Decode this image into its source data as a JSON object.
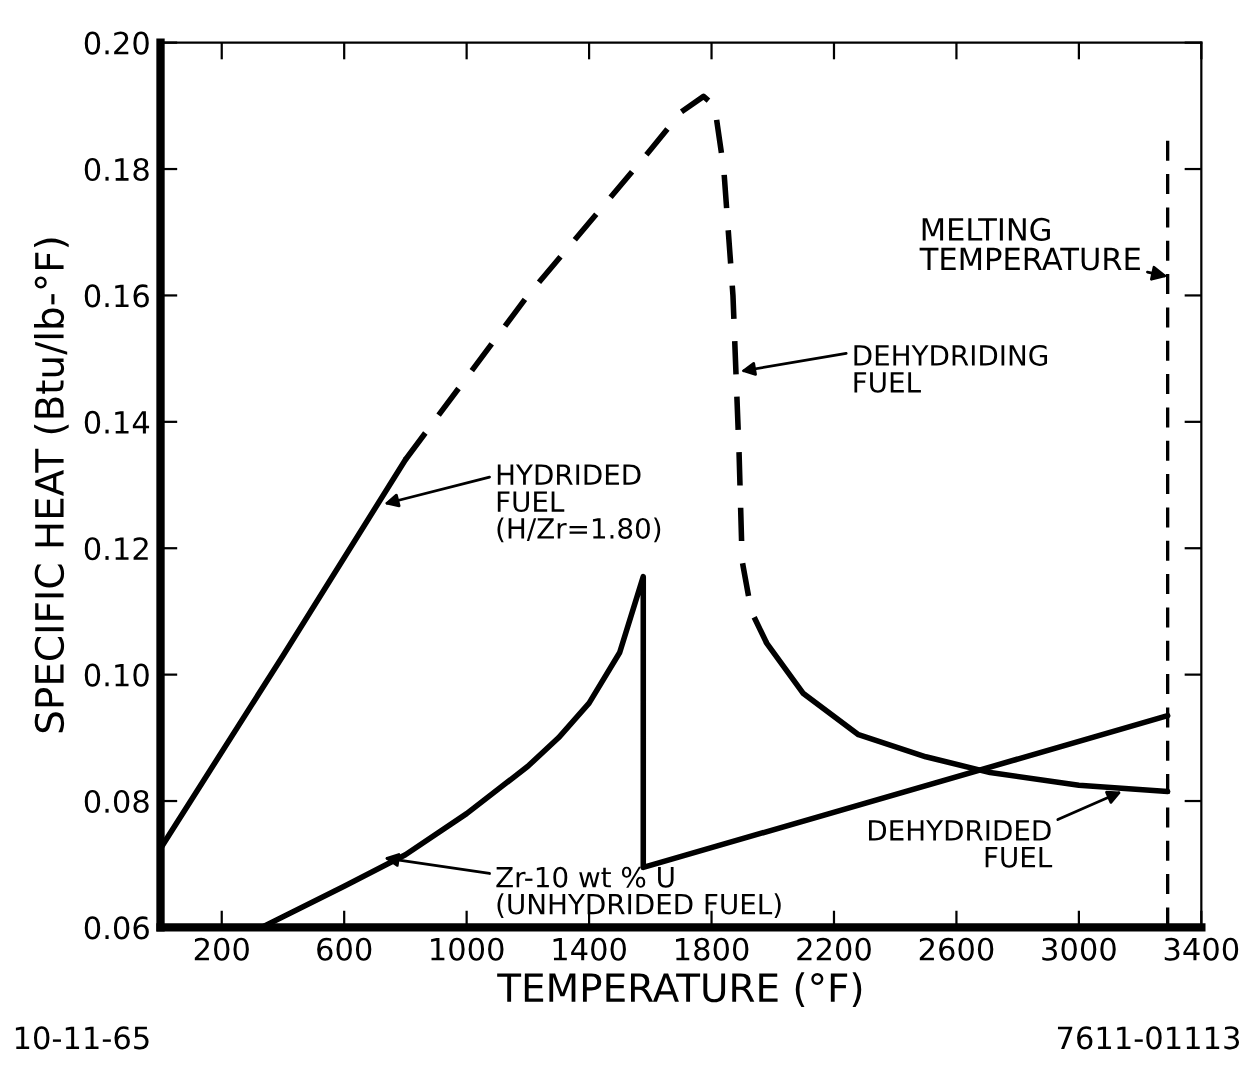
{
  "chart_data": {
    "type": "line",
    "xlabel": "TEMPERATURE (°F)",
    "ylabel": "SPECIFIC HEAT (Btu/lb-°F)",
    "xlim": [
      0,
      3400
    ],
    "xticks": [
      200,
      600,
      1000,
      1400,
      1800,
      2200,
      2600,
      3000,
      3400
    ],
    "ylim": [
      0.06,
      0.2
    ],
    "yticks": [
      {
        "value": 0.06,
        "label": "0.06"
      },
      {
        "value": 0.08,
        "label": "0.08"
      },
      {
        "value": 0.1,
        "label": "0.10"
      },
      {
        "value": 0.12,
        "label": "0.12"
      },
      {
        "value": 0.14,
        "label": "0.14"
      },
      {
        "value": 0.16,
        "label": "0.16"
      },
      {
        "value": 0.18,
        "label": "0.18"
      },
      {
        "value": 0.2,
        "label": "0.20"
      }
    ],
    "grid": false,
    "marker": "none",
    "series": [
      {
        "color": "#000000",
        "line_style": "solid",
        "x": [
          0,
          400,
          800
        ],
        "values": [
          0.0725,
          0.103,
          0.134
        ]
      },
      {
        "color": "#000000",
        "line_style": "dashed",
        "x": [
          800,
          1200,
          1600,
          1700,
          1774,
          1810,
          1840,
          1870,
          1890,
          1900,
          1930,
          1980
        ],
        "values": [
          0.134,
          0.16,
          0.183,
          0.189,
          0.1915,
          0.19,
          0.18,
          0.16,
          0.135,
          0.118,
          0.11,
          0.105
        ]
      },
      {
        "color": "#000000",
        "line_style": "solid",
        "x": [
          1980,
          2100,
          2280,
          2500,
          2710,
          3000,
          3290
        ],
        "values": [
          0.105,
          0.097,
          0.0905,
          0.087,
          0.0845,
          0.0825,
          0.0815
        ]
      },
      {
        "color": "#000000",
        "line_style": "solid",
        "x": [
          330,
          600,
          800,
          1000,
          1200,
          1300,
          1400,
          1500,
          1577,
          1577,
          3290
        ],
        "values": [
          0.06,
          0.0665,
          0.0715,
          0.078,
          0.0855,
          0.09,
          0.0955,
          0.1035,
          0.1155,
          0.0695,
          0.0935
        ]
      }
    ],
    "ref_lines": [
      {
        "axis": "x",
        "value": 3290,
        "label": "MELTING\nTEMPERATURE",
        "color": "#000000",
        "line_style": "dashed"
      }
    ],
    "annotations": [
      {
        "text": "HYDRIDED\nFUEL\n(H/Zr=1.80)",
        "x": 730,
        "y": 0.127
      },
      {
        "text": "DEHYDRIDING\nFUEL",
        "x": 1895,
        "y": 0.148
      },
      {
        "text": "Zr-10 wt % U\n(UNHYDRIDED FUEL)",
        "x": 730,
        "y": 0.071
      },
      {
        "text": "DEHYDRIDED\nFUEL",
        "x": 3140,
        "y": 0.0815
      },
      "10-11-65",
      "7611-01113"
    ]
  }
}
